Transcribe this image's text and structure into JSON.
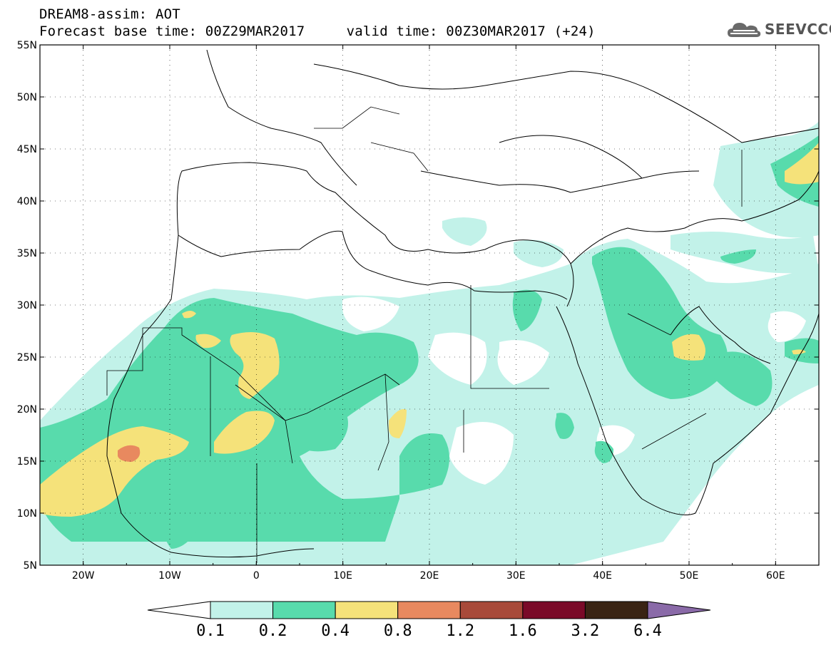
{
  "title": {
    "line1": "DREAM8-assim: AOT",
    "line2": "Forecast base time: 00Z29MAR2017     valid time: 00Z30MAR2017 (+24)"
  },
  "logo": {
    "text": "SEEVCCC",
    "icon": "cloud-icon"
  },
  "map": {
    "lon_range": [
      -25,
      65
    ],
    "lat_range": [
      5,
      55
    ],
    "lat_ticks": [
      "55N",
      "50N",
      "45N",
      "40N",
      "35N",
      "30N",
      "25N",
      "20N",
      "15N",
      "10N",
      "5N"
    ],
    "lon_ticks": [
      "20W",
      "10W",
      "0",
      "10E",
      "20E",
      "30E",
      "40E",
      "50E",
      "60E"
    ],
    "variable": "AOT"
  },
  "colorbar": {
    "labels": [
      "0.1",
      "0.2",
      "0.4",
      "0.8",
      "1.2",
      "1.6",
      "3.2",
      "6.4"
    ],
    "colors": [
      "#ffffff",
      "#c2f2e9",
      "#58dbac",
      "#f5e27a",
      "#e8895f",
      "#a84a3a",
      "#7a0a28",
      "#3a2414",
      "#8a6aa8"
    ]
  }
}
